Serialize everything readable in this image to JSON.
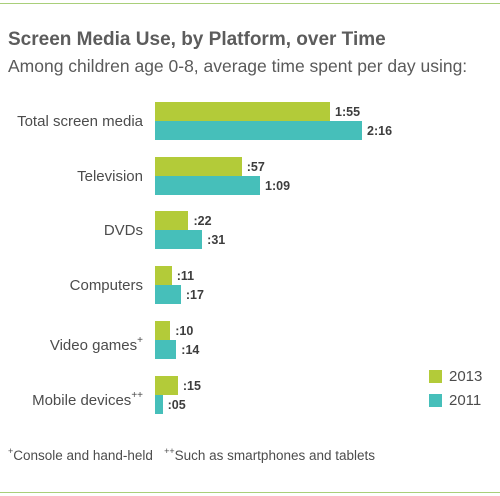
{
  "chart_data": {
    "type": "bar",
    "orientation": "horizontal",
    "title": "Screen Media Use, by Platform, over Time",
    "subtitle": "Among children age 0-8, average time spent per day using:",
    "categories": [
      "Total screen media",
      "Television",
      "DVDs",
      "Computers",
      "Video games",
      "Mobile devices"
    ],
    "category_marks": [
      "",
      "",
      "",
      "",
      "+",
      "++"
    ],
    "series": [
      {
        "name": "2013",
        "color": "#b3cb39",
        "values": [
          115,
          57,
          22,
          11,
          10,
          15
        ],
        "labels": [
          "1:55",
          ":57",
          ":22",
          ":11",
          ":10",
          ":15"
        ]
      },
      {
        "name": "2011",
        "color": "#46bfba",
        "values": [
          136,
          69,
          31,
          17,
          14,
          5
        ],
        "labels": [
          "2:16",
          "1:09",
          ":31",
          ":17",
          ":14",
          ":05"
        ]
      }
    ],
    "value_unit": "minutes",
    "legend_position": "bottom-right",
    "grid": false
  },
  "footnotes": {
    "mark1": "+",
    "text1": "Console and hand-held",
    "mark2": "++",
    "text2": "Such as smartphones and tablets"
  }
}
